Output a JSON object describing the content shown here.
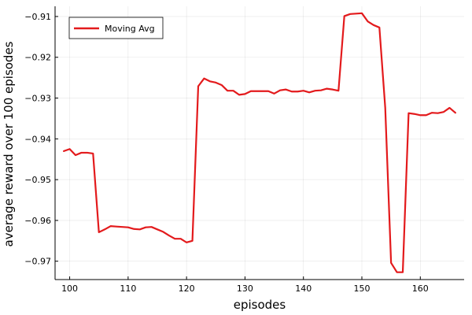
{
  "chart_data": {
    "type": "line",
    "title": "",
    "xlabel": "episodes",
    "ylabel": "average reward over 100 episodes",
    "xlim": [
      97.5,
      167.5
    ],
    "ylim": [
      -0.9745,
      -0.9075
    ],
    "xticks": [
      100,
      110,
      120,
      130,
      140,
      150,
      160
    ],
    "yticks": [
      -0.97,
      -0.96,
      -0.95,
      -0.94,
      -0.93,
      -0.92,
      -0.91
    ],
    "xtick_labels": [
      "100",
      "110",
      "120",
      "130",
      "140",
      "150",
      "160"
    ],
    "ytick_labels": [
      "−0.97",
      "−0.96",
      "−0.95",
      "−0.94",
      "−0.93",
      "−0.92",
      "−0.91"
    ],
    "grid": true,
    "legend_position": "top-left",
    "series": [
      {
        "name": "Moving Avg",
        "color": "#e31a1c",
        "x": [
          99,
          100,
          101,
          102,
          103,
          104,
          105,
          106,
          107,
          108,
          109,
          110,
          111,
          112,
          113,
          114,
          115,
          116,
          117,
          118,
          119,
          120,
          121,
          122,
          123,
          124,
          125,
          126,
          127,
          128,
          129,
          130,
          131,
          132,
          133,
          134,
          135,
          136,
          137,
          138,
          139,
          140,
          141,
          142,
          143,
          144,
          145,
          146,
          147,
          148,
          149,
          150,
          151,
          152,
          153,
          154,
          155,
          156,
          157,
          158,
          159,
          160,
          161,
          162,
          163,
          164,
          165,
          166
        ],
        "y": [
          -0.943,
          -0.9425,
          -0.944,
          -0.9434,
          -0.9434,
          -0.9436,
          -0.9629,
          -0.9622,
          -0.9614,
          -0.9615,
          -0.9616,
          -0.9617,
          -0.9621,
          -0.9622,
          -0.9617,
          -0.9616,
          -0.9622,
          -0.9628,
          -0.9637,
          -0.9645,
          -0.9645,
          -0.9654,
          -0.965,
          -0.9271,
          -0.9252,
          -0.9259,
          -0.9262,
          -0.9268,
          -0.9282,
          -0.9282,
          -0.9292,
          -0.929,
          -0.9283,
          -0.9283,
          -0.9283,
          -0.9283,
          -0.9289,
          -0.9281,
          -0.9279,
          -0.9284,
          -0.9284,
          -0.9282,
          -0.9286,
          -0.9282,
          -0.9281,
          -0.9277,
          -0.9279,
          -0.9282,
          -0.9099,
          -0.9094,
          -0.9093,
          -0.9092,
          -0.9112,
          -0.9121,
          -0.9127,
          -0.9324,
          -0.9704,
          -0.9727,
          -0.9727,
          -0.9337,
          -0.9339,
          -0.9342,
          -0.9342,
          -0.9336,
          -0.9337,
          -0.9334,
          -0.9324,
          -0.9336
        ]
      }
    ]
  }
}
